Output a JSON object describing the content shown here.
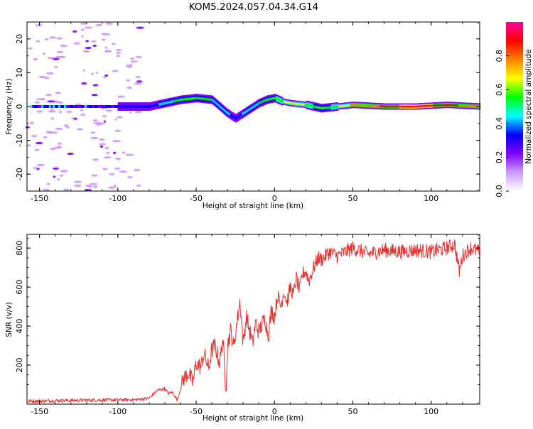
{
  "title": "KOM5.2024.057.04.34.G14",
  "colors": {
    "snr_line": "#e8302e",
    "background": "#ffffff",
    "axes": "#000000"
  },
  "chart_data": [
    {
      "type": "heatmap",
      "xlabel": "Height of straight line (km)",
      "ylabel": "Frequency (Hz)",
      "xlim": [
        -158,
        131
      ],
      "ylim": [
        -25,
        25
      ],
      "xticks": [
        -150,
        -100,
        -50,
        0,
        50,
        100
      ],
      "yticks": [
        -20,
        -10,
        0,
        10,
        20
      ],
      "colorbar": {
        "label": "Normalized spectral amplitude",
        "range": [
          0,
          1
        ],
        "ticks": [
          0.0,
          0.2,
          0.4,
          0.6,
          0.8
        ],
        "colormap": [
          "#ffffff",
          "#cc99ff",
          "#8000ff",
          "#0000ff",
          "#00ffff",
          "#00ff00",
          "#ffff00",
          "#ff8000",
          "#ff0000",
          "#ff00a0"
        ]
      },
      "ridge": {
        "x": [
          -100,
          -80,
          -70,
          -60,
          -50,
          -40,
          -35,
          -30,
          -25,
          -20,
          -15,
          -10,
          -5,
          0,
          5,
          10,
          20,
          30,
          40,
          50,
          70,
          90,
          110,
          131
        ],
        "frequency": [
          0,
          0,
          1,
          2,
          2.5,
          2,
          0,
          -2,
          -3.5,
          -2,
          -0.5,
          1,
          2,
          2.5,
          1.5,
          1,
          0.5,
          -0.5,
          0,
          0.5,
          0,
          0,
          0.5,
          0
        ],
        "amplitude": [
          0.3,
          0.3,
          0.45,
          0.55,
          0.55,
          0.5,
          0.45,
          0.4,
          0.35,
          0.4,
          0.45,
          0.5,
          0.5,
          0.55,
          0.6,
          0.7,
          0.6,
          0.5,
          0.6,
          0.75,
          0.85,
          0.9,
          0.85,
          0.8
        ]
      },
      "noise_region": {
        "x_from": -158,
        "x_to": -85,
        "amplitude": 0.08
      },
      "grid": false
    },
    {
      "type": "line",
      "xlabel": "Height of straight line (km)",
      "ylabel": "SNR (v/v)",
      "xlim": [
        -158,
        131
      ],
      "ylim": [
        0,
        870
      ],
      "xticks": [
        -150,
        -100,
        -50,
        0,
        50,
        100
      ],
      "yticks": [
        200,
        400,
        600,
        800
      ],
      "series": [
        {
          "x": [
            -158,
            -140,
            -120,
            -100,
            -90,
            -80,
            -75,
            -70,
            -68,
            -65,
            -62,
            -60,
            -58,
            -55,
            -52,
            -50,
            -47,
            -45,
            -42,
            -40,
            -38,
            -35,
            -33,
            -31,
            -30,
            -28,
            -26,
            -24,
            -22,
            -20,
            -18,
            -16,
            -14,
            -12,
            -10,
            -8,
            -6,
            -4,
            -2,
            0,
            2,
            4,
            6,
            8,
            10,
            12,
            14,
            16,
            18,
            20,
            22,
            25,
            28,
            30,
            35,
            40,
            50,
            60,
            70,
            80,
            90,
            100,
            110,
            115,
            118,
            120,
            125,
            131
          ],
          "values": [
            15,
            18,
            20,
            22,
            22,
            30,
            70,
            80,
            55,
            60,
            20,
            80,
            130,
            160,
            110,
            210,
            190,
            260,
            180,
            280,
            300,
            210,
            340,
            60,
            300,
            380,
            290,
            420,
            530,
            310,
            450,
            380,
            310,
            420,
            370,
            410,
            440,
            350,
            480,
            450,
            560,
            500,
            580,
            520,
            600,
            560,
            650,
            580,
            670,
            680,
            630,
            700,
            750,
            740,
            780,
            760,
            800,
            770,
            790,
            780,
            790,
            780,
            800,
            820,
            680,
            760,
            800,
            780
          ]
        }
      ],
      "grid": false
    }
  ]
}
